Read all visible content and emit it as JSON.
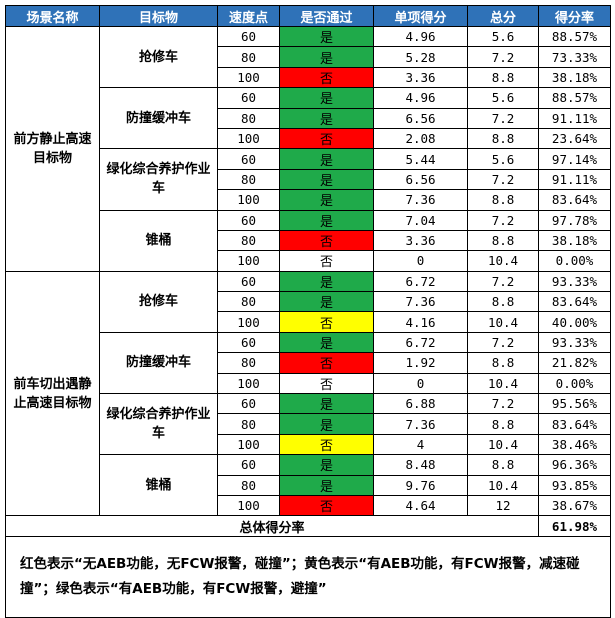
{
  "headers": [
    "场景名称",
    "目标物",
    "速度点",
    "是否通过",
    "单项得分",
    "总分",
    "得分率"
  ],
  "colors": {
    "header_bg": "#2f72b8",
    "red": "#ff0000",
    "green": "#1faa4a",
    "yellow": "#ffff00",
    "white": "#ffffff"
  },
  "scenes": [
    {
      "name": "前方静止高速目标物",
      "targets": [
        {
          "name": "抢修车",
          "rows": [
            {
              "speed": "60",
              "pass": "是",
              "color": "green",
              "score": "4.96",
              "total": "5.6",
              "rate": "88.57%"
            },
            {
              "speed": "80",
              "pass": "是",
              "color": "green",
              "score": "5.28",
              "total": "7.2",
              "rate": "73.33%"
            },
            {
              "speed": "100",
              "pass": "否",
              "color": "red",
              "score": "3.36",
              "total": "8.8",
              "rate": "38.18%"
            }
          ]
        },
        {
          "name": "防撞缓冲车",
          "rows": [
            {
              "speed": "60",
              "pass": "是",
              "color": "green",
              "score": "4.96",
              "total": "5.6",
              "rate": "88.57%"
            },
            {
              "speed": "80",
              "pass": "是",
              "color": "green",
              "score": "6.56",
              "total": "7.2",
              "rate": "91.11%"
            },
            {
              "speed": "100",
              "pass": "否",
              "color": "red",
              "score": "2.08",
              "total": "8.8",
              "rate": "23.64%"
            }
          ]
        },
        {
          "name": "绿化综合养护作业车",
          "rows": [
            {
              "speed": "60",
              "pass": "是",
              "color": "green",
              "score": "5.44",
              "total": "5.6",
              "rate": "97.14%"
            },
            {
              "speed": "80",
              "pass": "是",
              "color": "green",
              "score": "6.56",
              "total": "7.2",
              "rate": "91.11%"
            },
            {
              "speed": "100",
              "pass": "是",
              "color": "green",
              "score": "7.36",
              "total": "8.8",
              "rate": "83.64%"
            }
          ]
        },
        {
          "name": "锥桶",
          "rows": [
            {
              "speed": "60",
              "pass": "是",
              "color": "green",
              "score": "7.04",
              "total": "7.2",
              "rate": "97.78%"
            },
            {
              "speed": "80",
              "pass": "否",
              "color": "red",
              "score": "3.36",
              "total": "8.8",
              "rate": "38.18%"
            },
            {
              "speed": "100",
              "pass": "否",
              "color": "white",
              "score": "0",
              "total": "10.4",
              "rate": "0.00%"
            }
          ]
        }
      ]
    },
    {
      "name": "前车切出遇静止高速目标物",
      "targets": [
        {
          "name": "抢修车",
          "rows": [
            {
              "speed": "60",
              "pass": "是",
              "color": "green",
              "score": "6.72",
              "total": "7.2",
              "rate": "93.33%"
            },
            {
              "speed": "80",
              "pass": "是",
              "color": "green",
              "score": "7.36",
              "total": "8.8",
              "rate": "83.64%"
            },
            {
              "speed": "100",
              "pass": "否",
              "color": "yellow",
              "score": "4.16",
              "total": "10.4",
              "rate": "40.00%"
            }
          ]
        },
        {
          "name": "防撞缓冲车",
          "rows": [
            {
              "speed": "60",
              "pass": "是",
              "color": "green",
              "score": "6.72",
              "total": "7.2",
              "rate": "93.33%"
            },
            {
              "speed": "80",
              "pass": "否",
              "color": "red",
              "score": "1.92",
              "total": "8.8",
              "rate": "21.82%"
            },
            {
              "speed": "100",
              "pass": "否",
              "color": "white",
              "score": "0",
              "total": "10.4",
              "rate": "0.00%"
            }
          ]
        },
        {
          "name": "绿化综合养护作业车",
          "rows": [
            {
              "speed": "60",
              "pass": "是",
              "color": "green",
              "score": "6.88",
              "total": "7.2",
              "rate": "95.56%"
            },
            {
              "speed": "80",
              "pass": "是",
              "color": "green",
              "score": "7.36",
              "total": "8.8",
              "rate": "83.64%"
            },
            {
              "speed": "100",
              "pass": "否",
              "color": "yellow",
              "score": "4",
              "total": "10.4",
              "rate": "38.46%"
            }
          ]
        },
        {
          "name": "锥桶",
          "rows": [
            {
              "speed": "60",
              "pass": "是",
              "color": "green",
              "score": "8.48",
              "total": "8.8",
              "rate": "96.36%"
            },
            {
              "speed": "80",
              "pass": "是",
              "color": "green",
              "score": "9.76",
              "total": "10.4",
              "rate": "93.85%"
            },
            {
              "speed": "100",
              "pass": "否",
              "color": "red",
              "score": "4.64",
              "total": "12",
              "rate": "38.67%"
            }
          ]
        }
      ]
    }
  ],
  "overall": {
    "label": "总体得分率",
    "value": "61.98%"
  },
  "note": "红色表示“无AEB功能，无FCW报警，碰撞”；黄色表示“有AEB功能，有FCW报警，减速碰撞”；绿色表示“有AEB功能，有FCW报警，避撞”"
}
